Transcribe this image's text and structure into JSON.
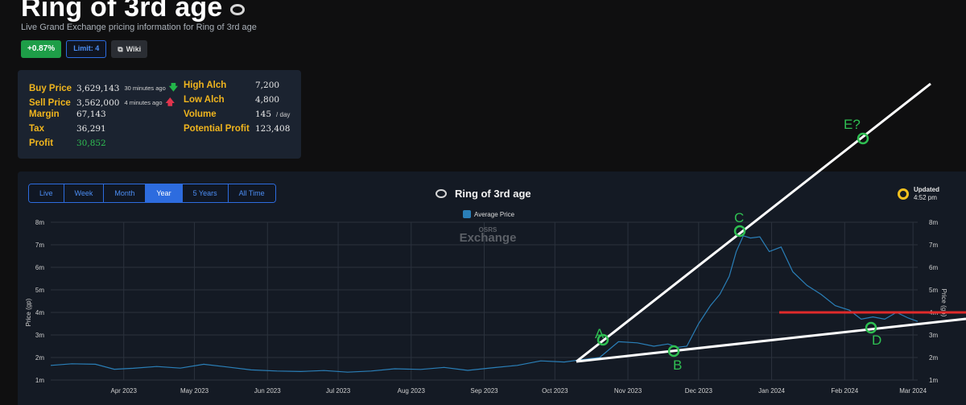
{
  "header": {
    "title": "Ring of 3rd age",
    "subtitle": "Live Grand Exchange pricing information for Ring of 3rd age"
  },
  "badges": {
    "change": "+0.87%",
    "limit": "Limit: 4",
    "wiki": "Wiki",
    "wiki_icon": "external-link-icon"
  },
  "stats": {
    "buy_price": {
      "label": "Buy Price",
      "value": "3,629,143",
      "ago": "30 minutes ago",
      "arrow": "down-arrow-icon"
    },
    "sell_price": {
      "label": "Sell Price",
      "value": "3,562,000",
      "ago": "4 minutes ago",
      "arrow": "up-arrow-icon"
    },
    "margin": {
      "label": "Margin",
      "value": "67,143"
    },
    "tax": {
      "label": "Tax",
      "value": "36,291"
    },
    "profit": {
      "label": "Profit",
      "value": "30,852"
    },
    "high_alch": {
      "label": "High Alch",
      "value": "7,200"
    },
    "low_alch": {
      "label": "Low Alch",
      "value": "4,800"
    },
    "volume": {
      "label": "Volume",
      "value": "145",
      "unit": "/ day"
    },
    "potential_profit": {
      "label": "Potential Profit",
      "value": "123,408"
    }
  },
  "chart_controls": {
    "ranges": [
      "Live",
      "Week",
      "Month",
      "Year",
      "5 Years",
      "All Time"
    ],
    "active_range": "Year"
  },
  "chart_header": {
    "title": "Ring of 3rd age",
    "updated_label": "Updated",
    "updated_time": "4:52 pm",
    "watermark_small": "OSRS",
    "watermark_large": "Exchange"
  },
  "colors": {
    "series": "#2a7fb8",
    "trendline": "#ffffff",
    "resistance": "#e02b2b",
    "annotation": "#2fbf52",
    "label": "#f0b51e",
    "accent": "#2d6cdf"
  },
  "chart_data": {
    "type": "line",
    "title": "Ring of 3rd age",
    "ylabel": "Price (gp)",
    "ylabel_right": "Price (gp)",
    "yticks": [
      "1m",
      "2m",
      "3m",
      "4m",
      "5m",
      "6m",
      "7m",
      "8m"
    ],
    "ylim": [
      1000000,
      8000000
    ],
    "xticks": [
      "Apr 2023",
      "May 2023",
      "Jun 2023",
      "Jul 2023",
      "Aug 2023",
      "Sep 2023",
      "Oct 2023",
      "Nov 2023",
      "Dec 2023",
      "Jan 2024",
      "Feb 2024",
      "Mar 2024"
    ],
    "grid": true,
    "legend_position": "top-center",
    "series": [
      {
        "name": "Average Price",
        "x": [
          "2023-03-01",
          "2023-03-10",
          "2023-03-20",
          "2023-03-28",
          "2023-04-05",
          "2023-04-15",
          "2023-04-25",
          "2023-05-05",
          "2023-05-15",
          "2023-05-25",
          "2023-06-05",
          "2023-06-15",
          "2023-06-25",
          "2023-07-05",
          "2023-07-15",
          "2023-07-25",
          "2023-08-05",
          "2023-08-15",
          "2023-08-25",
          "2023-09-05",
          "2023-09-15",
          "2023-09-25",
          "2023-10-05",
          "2023-10-12",
          "2023-10-20",
          "2023-10-28",
          "2023-11-05",
          "2023-11-12",
          "2023-11-18",
          "2023-11-22",
          "2023-11-26",
          "2023-12-01",
          "2023-12-06",
          "2023-12-10",
          "2023-12-14",
          "2023-12-17",
          "2023-12-20",
          "2023-12-23",
          "2023-12-27",
          "2023-12-31",
          "2024-01-05",
          "2024-01-10",
          "2024-01-16",
          "2024-01-22",
          "2024-01-28",
          "2024-02-03",
          "2024-02-08",
          "2024-02-13",
          "2024-02-18",
          "2024-02-23",
          "2024-02-28",
          "2024-03-03"
        ],
        "values": [
          1650000,
          1720000,
          1700000,
          1480000,
          1520000,
          1600000,
          1530000,
          1700000,
          1580000,
          1450000,
          1400000,
          1380000,
          1420000,
          1350000,
          1400000,
          1500000,
          1470000,
          1560000,
          1430000,
          1550000,
          1650000,
          1850000,
          1800000,
          1900000,
          2000000,
          2700000,
          2650000,
          2500000,
          2600000,
          2450000,
          2500000,
          3500000,
          4300000,
          4800000,
          5600000,
          6700000,
          7400000,
          7300000,
          7350000,
          6700000,
          6900000,
          5800000,
          5200000,
          4800000,
          4300000,
          4100000,
          3700000,
          3800000,
          3700000,
          4000000,
          3750000,
          3600000
        ]
      }
    ],
    "annotations": [
      {
        "label": "A",
        "x": "2023-10-24",
        "y": 2800000
      },
      {
        "label": "B",
        "x": "2023-11-20",
        "y": 2300000
      },
      {
        "label": "C",
        "x": "2023-12-17",
        "y": 7600000
      },
      {
        "label": "D",
        "x": "2024-02-10",
        "y": 3300000
      },
      {
        "label": "E?",
        "x": "2024-02-28",
        "y": 11000000
      }
    ]
  }
}
